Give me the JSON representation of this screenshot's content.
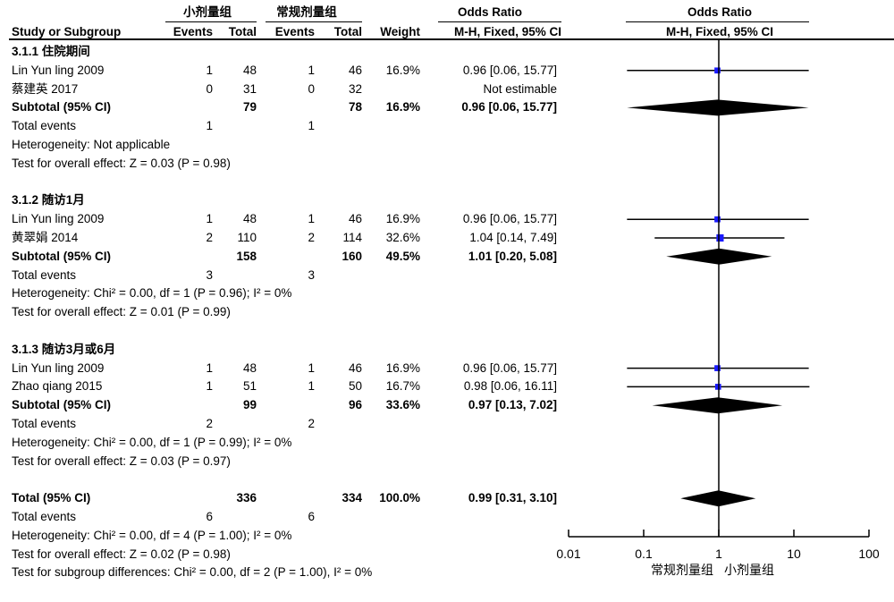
{
  "header": {
    "group1": "小剂量组",
    "group2": "常规剂量组",
    "or_header": "Odds Ratio",
    "study_col": "Study or Subgroup",
    "events1": "Events",
    "total1": "Total",
    "events2": "Events",
    "total2": "Total",
    "weight": "Weight",
    "method": "M-H, Fixed, 95% CI",
    "plot_header": "Odds Ratio",
    "plot_method": "M-H, Fixed, 95% CI"
  },
  "rows": [
    {
      "type": "subgroup-title",
      "label": "3.1.1 住院期间"
    },
    {
      "type": "study",
      "label": "Lin Yun ling 2009",
      "e1": "1",
      "t1": "48",
      "e2": "1",
      "t2": "46",
      "weight": "16.9%",
      "ci": "0.96 [0.06, 15.77]",
      "or": 0.96,
      "lo": 0.06,
      "hi": 15.77,
      "w": 16.9
    },
    {
      "type": "study",
      "label": "蔡建英 2017",
      "e1": "0",
      "t1": "31",
      "e2": "0",
      "t2": "32",
      "weight": "",
      "ci": "Not estimable"
    },
    {
      "type": "subtotal",
      "label": "Subtotal (95% CI)",
      "t1": "79",
      "t2": "78",
      "weight": "16.9%",
      "ci": "0.96 [0.06, 15.77]",
      "or": 0.96,
      "lo": 0.06,
      "hi": 15.77
    },
    {
      "type": "events",
      "label": "Total events",
      "e1": "1",
      "e2": "1"
    },
    {
      "type": "note",
      "label": "Heterogeneity: Not applicable"
    },
    {
      "type": "note",
      "label": "Test for overall effect: Z = 0.03 (P = 0.98)"
    },
    {
      "type": "blank"
    },
    {
      "type": "subgroup-title",
      "label": "3.1.2 随访1月"
    },
    {
      "type": "study",
      "label": "Lin Yun ling 2009",
      "e1": "1",
      "t1": "48",
      "e2": "1",
      "t2": "46",
      "weight": "16.9%",
      "ci": "0.96 [0.06, 15.77]",
      "or": 0.96,
      "lo": 0.06,
      "hi": 15.77,
      "w": 16.9
    },
    {
      "type": "study",
      "label": "黄翠娟 2014",
      "e1": "2",
      "t1": "110",
      "e2": "2",
      "t2": "114",
      "weight": "32.6%",
      "ci": "1.04 [0.14, 7.49]",
      "or": 1.04,
      "lo": 0.14,
      "hi": 7.49,
      "w": 32.6
    },
    {
      "type": "subtotal",
      "label": "Subtotal (95% CI)",
      "t1": "158",
      "t2": "160",
      "weight": "49.5%",
      "ci": "1.01 [0.20, 5.08]",
      "or": 1.01,
      "lo": 0.2,
      "hi": 5.08
    },
    {
      "type": "events",
      "label": "Total events",
      "e1": "3",
      "e2": "3"
    },
    {
      "type": "note",
      "label": "Heterogeneity: Chi² = 0.00, df = 1 (P = 0.96); I² = 0%"
    },
    {
      "type": "note",
      "label": "Test for overall effect: Z = 0.01 (P = 0.99)"
    },
    {
      "type": "blank"
    },
    {
      "type": "subgroup-title",
      "label": "3.1.3 随访3月或6月"
    },
    {
      "type": "study",
      "label": "Lin Yun ling 2009",
      "e1": "1",
      "t1": "48",
      "e2": "1",
      "t2": "46",
      "weight": "16.9%",
      "ci": "0.96 [0.06, 15.77]",
      "or": 0.96,
      "lo": 0.06,
      "hi": 15.77,
      "w": 16.9
    },
    {
      "type": "study",
      "label": "Zhao qiang 2015",
      "e1": "1",
      "t1": "51",
      "e2": "1",
      "t2": "50",
      "weight": "16.7%",
      "ci": "0.98 [0.06, 16.11]",
      "or": 0.98,
      "lo": 0.06,
      "hi": 16.11,
      "w": 16.7
    },
    {
      "type": "subtotal",
      "label": "Subtotal (95% CI)",
      "t1": "99",
      "t2": "96",
      "weight": "33.6%",
      "ci": "0.97 [0.13, 7.02]",
      "or": 0.97,
      "lo": 0.13,
      "hi": 7.02
    },
    {
      "type": "events",
      "label": "Total events",
      "e1": "2",
      "e2": "2"
    },
    {
      "type": "note",
      "label": "Heterogeneity: Chi² = 0.00, df = 1 (P = 0.99); I² = 0%"
    },
    {
      "type": "note",
      "label": "Test for overall effect: Z = 0.03 (P = 0.97)"
    },
    {
      "type": "blank"
    },
    {
      "type": "subtotal",
      "label": "Total (95% CI)",
      "t1": "336",
      "t2": "334",
      "weight": "100.0%",
      "ci": "0.99 [0.31, 3.10]",
      "or": 0.99,
      "lo": 0.31,
      "hi": 3.1
    },
    {
      "type": "events",
      "label": "Total events",
      "e1": "6",
      "e2": "6"
    },
    {
      "type": "note",
      "label": "Heterogeneity: Chi² = 0.00, df = 4 (P = 1.00); I² = 0%"
    },
    {
      "type": "note",
      "label": "Test for overall effect: Z = 0.02 (P = 0.98)"
    },
    {
      "type": "note",
      "label": "Test for subgroup differences: Chi² = 0.00, df = 2 (P = 1.00), I² = 0%"
    }
  ],
  "chart_data": {
    "type": "forest",
    "scale": "log",
    "xlim": [
      0.01,
      100
    ],
    "ticks": [
      "0.01",
      "0.1",
      "1",
      "10",
      "100"
    ],
    "tick_values": [
      0.01,
      0.1,
      1,
      10,
      100
    ],
    "reference_line": 1,
    "left_label": "常规剂量组",
    "right_label": "小剂量组",
    "square_color": "#1a1aff",
    "line_color": "#000000"
  }
}
